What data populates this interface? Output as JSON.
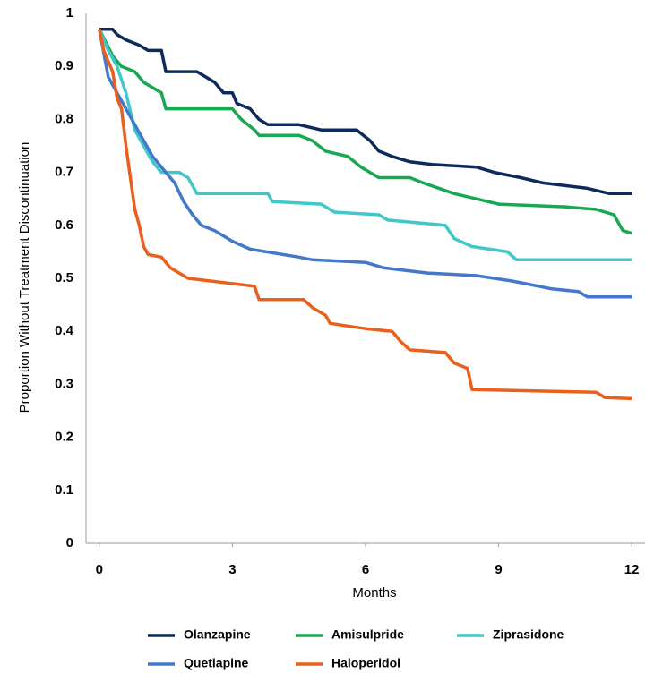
{
  "chart_data": {
    "type": "line",
    "xlabel": "Months",
    "ylabel": "Proportion Without Treatment Discontinuation",
    "xlim": [
      -0.3,
      12.3
    ],
    "xticks": [
      0,
      3,
      6,
      9,
      12
    ],
    "ylim": [
      0,
      1
    ],
    "yticks": [
      0,
      0.1,
      0.2,
      0.3,
      0.4,
      0.5,
      0.6,
      0.7,
      0.8,
      0.9,
      1
    ],
    "grid": false,
    "legend": "bottom",
    "series": [
      {
        "name": "Olanzapine",
        "color": "#0d2a5c",
        "x": [
          0,
          0.3,
          0.4,
          0.6,
          0.9,
          1.1,
          1.4,
          1.5,
          2.2,
          2.4,
          2.6,
          2.8,
          3.0,
          3.1,
          3.4,
          3.6,
          3.8,
          4.5,
          5.0,
          5.8,
          6.1,
          6.3,
          6.6,
          7.0,
          7.5,
          8.5,
          8.9,
          9.5,
          10,
          11,
          11.5,
          12
        ],
        "values": [
          0.97,
          0.97,
          0.96,
          0.95,
          0.94,
          0.93,
          0.93,
          0.89,
          0.89,
          0.88,
          0.87,
          0.85,
          0.85,
          0.83,
          0.82,
          0.8,
          0.79,
          0.79,
          0.78,
          0.78,
          0.76,
          0.74,
          0.73,
          0.72,
          0.715,
          0.71,
          0.7,
          0.69,
          0.68,
          0.67,
          0.66,
          0.66
        ]
      },
      {
        "name": "Amisulpride",
        "color": "#17a851",
        "x": [
          0,
          0.3,
          0.5,
          0.8,
          1.0,
          1.2,
          1.4,
          1.5,
          3.0,
          3.2,
          3.5,
          3.6,
          4.5,
          4.8,
          5.1,
          5.6,
          5.9,
          6.3,
          7.0,
          7.3,
          8.0,
          8.5,
          9.0,
          10.5,
          11.2,
          11.6,
          11.8,
          12
        ],
        "values": [
          0.97,
          0.92,
          0.9,
          0.89,
          0.87,
          0.86,
          0.85,
          0.82,
          0.82,
          0.8,
          0.78,
          0.77,
          0.77,
          0.76,
          0.74,
          0.73,
          0.71,
          0.69,
          0.69,
          0.68,
          0.66,
          0.65,
          0.64,
          0.635,
          0.63,
          0.62,
          0.59,
          0.585
        ]
      },
      {
        "name": "Ziprasidone",
        "color": "#3fc7c9",
        "x": [
          0,
          0.2,
          0.4,
          0.6,
          0.8,
          1.0,
          1.2,
          1.4,
          1.8,
          2.0,
          2.2,
          3.8,
          3.9,
          5.0,
          5.3,
          6.3,
          6.5,
          7.8,
          8.0,
          8.4,
          9.2,
          9.4,
          12
        ],
        "values": [
          0.97,
          0.93,
          0.9,
          0.85,
          0.78,
          0.75,
          0.72,
          0.7,
          0.7,
          0.69,
          0.66,
          0.66,
          0.645,
          0.64,
          0.625,
          0.62,
          0.61,
          0.6,
          0.575,
          0.56,
          0.55,
          0.535,
          0.535
        ]
      },
      {
        "name": "Quetiapine",
        "color": "#4478cb",
        "x": [
          0,
          0.2,
          0.4,
          0.6,
          0.8,
          1.0,
          1.2,
          1.5,
          1.7,
          1.9,
          2.1,
          2.3,
          2.6,
          3.0,
          3.4,
          4.5,
          4.8,
          6.0,
          6.4,
          7.4,
          8.5,
          9.3,
          9.6,
          10.2,
          10.8,
          11.0,
          12
        ],
        "values": [
          0.97,
          0.88,
          0.85,
          0.82,
          0.79,
          0.76,
          0.73,
          0.7,
          0.68,
          0.645,
          0.62,
          0.6,
          0.59,
          0.57,
          0.555,
          0.54,
          0.535,
          0.53,
          0.52,
          0.51,
          0.505,
          0.495,
          0.49,
          0.48,
          0.475,
          0.465,
          0.465
        ]
      },
      {
        "name": "Haloperidol",
        "color": "#e8601c",
        "x": [
          0,
          0.1,
          0.3,
          0.4,
          0.5,
          0.6,
          0.7,
          0.8,
          0.9,
          1.0,
          1.1,
          1.4,
          1.6,
          1.8,
          2.0,
          3.0,
          3.5,
          3.6,
          4.6,
          4.8,
          5.1,
          5.2,
          5.6,
          6.0,
          6.6,
          6.8,
          7.0,
          7.8,
          8.0,
          8.3,
          8.4,
          11.2,
          11.4,
          12
        ],
        "values": [
          0.97,
          0.93,
          0.89,
          0.84,
          0.82,
          0.75,
          0.69,
          0.63,
          0.6,
          0.56,
          0.545,
          0.54,
          0.52,
          0.51,
          0.5,
          0.49,
          0.485,
          0.46,
          0.46,
          0.445,
          0.43,
          0.415,
          0.41,
          0.405,
          0.4,
          0.38,
          0.365,
          0.36,
          0.34,
          0.33,
          0.29,
          0.285,
          0.275,
          0.273
        ]
      }
    ]
  }
}
